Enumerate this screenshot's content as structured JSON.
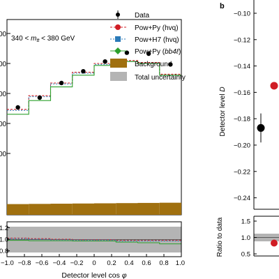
{
  "chart_data": [
    {
      "type": "line",
      "panel": "a (main)",
      "region_label": "340 < m_tt < 380 GeV",
      "region_label_parts": [
        "340 < ",
        "m",
        "tt",
        " < 380 GeV"
      ],
      "xlim": [
        -1.0,
        1.0
      ],
      "x_bin_edges": [
        -1.0,
        -0.75,
        -0.5,
        -0.25,
        0.0,
        0.25,
        0.5,
        0.75,
        1.0
      ],
      "ytick_labels": [
        "00",
        "00",
        "00",
        "00",
        "00"
      ],
      "series": [
        {
          "name": "Data",
          "kind": "points",
          "x": [
            -0.875,
            -0.625,
            -0.375,
            -0.125,
            0.125,
            0.375,
            0.625,
            0.875
          ],
          "y": [
            0.55,
            0.6,
            0.675,
            0.735,
            0.785,
            0.83,
            0.825,
            0.77
          ]
        },
        {
          "name": "Pow+Py (hvq)",
          "kind": "step",
          "y": [
            0.54,
            0.61,
            0.675,
            0.73,
            0.775,
            0.79,
            0.78,
            0.72
          ]
        },
        {
          "name": "Pow+H7 (hvq)",
          "kind": "step",
          "y": [
            0.535,
            0.605,
            0.67,
            0.725,
            0.77,
            0.785,
            0.775,
            0.715
          ]
        },
        {
          "name": "Pow+Py (bb4ℓ)",
          "kind": "step",
          "y": [
            0.515,
            0.585,
            0.655,
            0.715,
            0.765,
            0.785,
            0.775,
            0.715
          ]
        },
        {
          "name": "Background",
          "kind": "filled",
          "y": [
            0.055,
            0.056,
            0.057,
            0.058,
            0.059,
            0.06,
            0.061,
            0.062
          ]
        }
      ],
      "legend": [
        {
          "label": "Data",
          "marker": "point"
        },
        {
          "label": "Pow+Py (hvq)",
          "marker": "red-circle"
        },
        {
          "label": "Pow+H7 (hvq)",
          "marker": "blue-square"
        },
        {
          "label_parts": [
            "Pow+Py (",
            "bb4ℓ",
            ")"
          ],
          "marker": "green-diamond"
        },
        {
          "label": "Background",
          "marker": "brown-box"
        },
        {
          "label": "Total uncertainty",
          "marker": "grey-box"
        }
      ],
      "legend_position": "top-right"
    },
    {
      "type": "line",
      "panel": "a (ratio)",
      "ytick_labels": [
        "1.2",
        "1.0",
        "0.8"
      ],
      "ylim": [
        0.7,
        1.3
      ],
      "xlabel_parts": [
        "Detector level cos ",
        "φ"
      ],
      "xtick_labels": [
        "−1.0",
        "−0.8",
        "−0.6",
        "−0.4",
        "−0.2",
        "0",
        "0.2",
        "0.4",
        "0.6",
        "0.8",
        "1.0"
      ],
      "uncertainty_band": [
        0.8,
        1.2
      ],
      "series": [
        {
          "name": "Pow+Py (hvq)",
          "y": [
            1.02,
            1.01,
            1.0,
            0.99,
            0.99,
            0.98,
            0.98,
            0.98
          ]
        },
        {
          "name": "Pow+H7 (hvq)",
          "y": [
            1.01,
            1.0,
            0.99,
            0.985,
            0.985,
            0.97,
            0.97,
            0.97
          ]
        },
        {
          "name": "Pow+Py (bb4ℓ)",
          "y": [
            0.98,
            0.975,
            0.975,
            0.97,
            0.97,
            0.95,
            0.94,
            0.92
          ]
        }
      ]
    },
    {
      "type": "scatter",
      "panel": "b",
      "panel_label": "b",
      "ylabel_parts": [
        "Detector level ",
        "D"
      ],
      "ylim": [
        -0.25,
        -0.1
      ],
      "ytick_labels": [
        "−0.10",
        "−0.12",
        "−0.14",
        "−0.16",
        "−0.18",
        "−0.20",
        "−0.22",
        "−0.24"
      ],
      "series": [
        {
          "name": "Data",
          "y": [
            -0.187
          ],
          "err": [
            0.011
          ]
        },
        {
          "name": "Pow+Py (hvq)",
          "y": [
            -0.155
          ]
        }
      ]
    },
    {
      "type": "scatter",
      "panel": "b (ratio)",
      "ylabel": "Ratio to data",
      "ytick_labels": [
        "1.5",
        "1.0",
        "0.5"
      ],
      "series": [
        {
          "name": "Pow+Py (hvq)",
          "y": [
            0.83
          ]
        }
      ]
    }
  ]
}
